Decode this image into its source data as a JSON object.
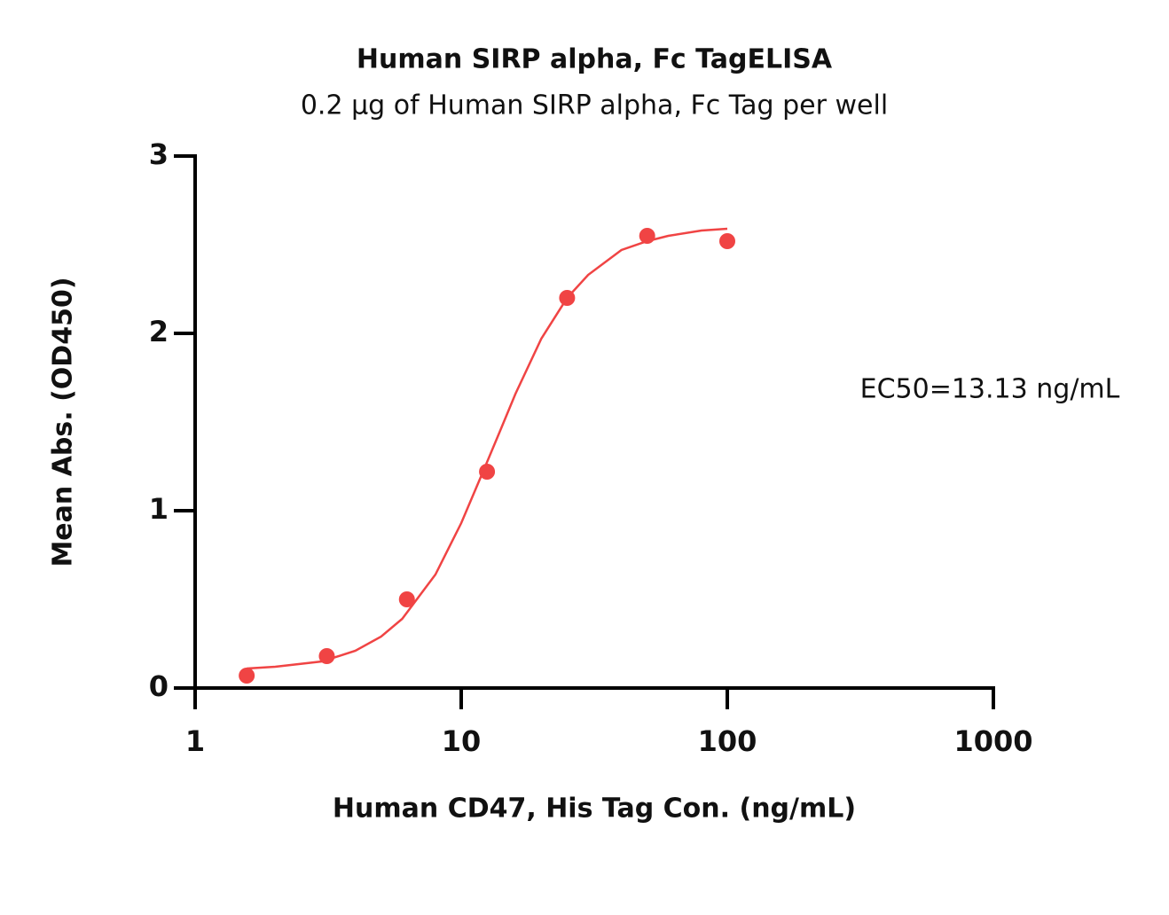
{
  "chart_data": {
    "type": "scatter",
    "title": "Human SIRP alpha, Fc TagELISA",
    "subtitle": "0.2 μg of Human SIRP alpha, Fc Tag per well",
    "x_label": "Human CD47, His Tag Con. (ng/mL)",
    "y_label": "Mean Abs. (OD450)",
    "annotation": "EC50=13.13 ng/mL",
    "xscale": "log",
    "xlim": [
      1,
      1000
    ],
    "xticks": [
      1,
      10,
      100,
      1000
    ],
    "ylim": [
      0,
      3
    ],
    "yticks": [
      0,
      1,
      2,
      3
    ],
    "series": [
      {
        "type": "scatter",
        "color": "#f04444",
        "x": [
          1.5625,
          3.125,
          6.25,
          12.5,
          25,
          50,
          100
        ],
        "values": [
          0.07,
          0.18,
          0.5,
          1.22,
          2.2,
          2.55,
          2.52
        ]
      },
      {
        "type": "line",
        "color": "#f04444",
        "x": [
          1.5625,
          2,
          3,
          4,
          5,
          6,
          8,
          10,
          12,
          14,
          16,
          20,
          25,
          30,
          40,
          50,
          60,
          80,
          100
        ],
        "values": [
          0.11,
          0.12,
          0.15,
          0.21,
          0.29,
          0.39,
          0.64,
          0.93,
          1.21,
          1.45,
          1.66,
          1.97,
          2.2,
          2.33,
          2.47,
          2.52,
          2.55,
          2.58,
          2.59
        ]
      }
    ]
  }
}
